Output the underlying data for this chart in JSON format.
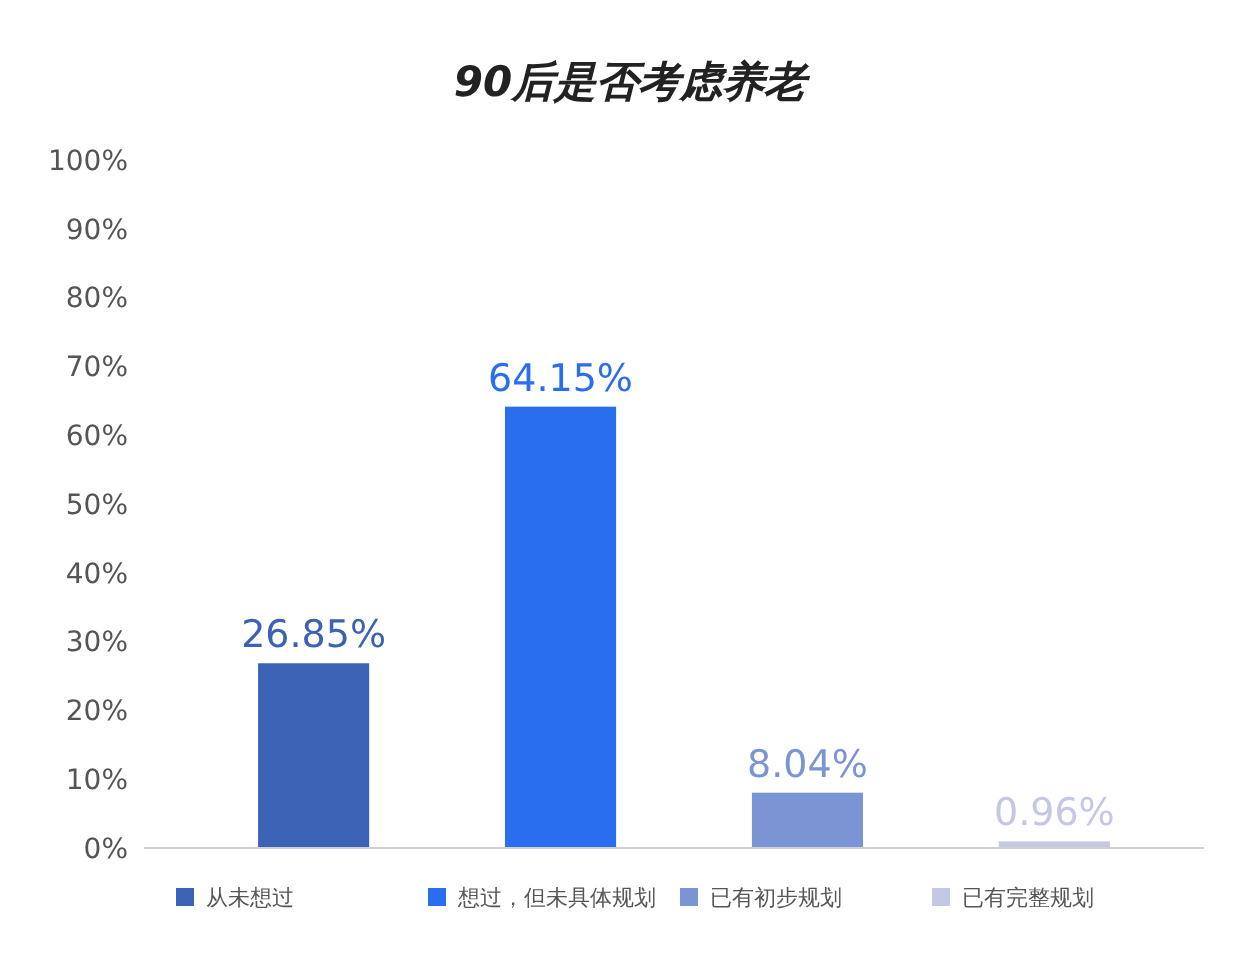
{
  "chart_data": {
    "type": "bar",
    "title": "90后是否考虑养老",
    "categories": [
      null,
      null,
      null,
      null
    ],
    "series": [
      {
        "name": "从未想过",
        "color": "#3b62b5",
        "values": [
          26.85,
          null,
          null,
          null
        ],
        "value_labels": [
          "26.85%",
          null,
          null,
          null
        ]
      },
      {
        "name": "想过，但未具体规划",
        "color": "#2a6ef0",
        "values": [
          null,
          64.15,
          null,
          null
        ],
        "value_labels": [
          null,
          "64.15%",
          null,
          null
        ]
      },
      {
        "name": "已有初步规划",
        "color": "#7b95d4",
        "values": [
          null,
          null,
          8.04,
          null
        ],
        "value_labels": [
          null,
          null,
          "8.04%",
          null
        ]
      },
      {
        "name": "已有完整规划",
        "color": "#c4c8e4",
        "values": [
          null,
          null,
          null,
          0.96
        ],
        "value_labels": [
          null,
          null,
          null,
          "0.96%"
        ]
      }
    ],
    "ylim": [
      0,
      100
    ],
    "yticks": [
      {
        "value": 0,
        "label": "0%"
      },
      {
        "value": 10,
        "label": "10%"
      },
      {
        "value": 20,
        "label": "20%"
      },
      {
        "value": 30,
        "label": "30%"
      },
      {
        "value": 40,
        "label": "40%"
      },
      {
        "value": 50,
        "label": "50%"
      },
      {
        "value": 60,
        "label": "60%"
      },
      {
        "value": 70,
        "label": "70%"
      },
      {
        "value": 80,
        "label": "80%"
      },
      {
        "value": 90,
        "label": "90%"
      },
      {
        "value": 100,
        "label": "100%"
      }
    ],
    "legend": "bottom"
  }
}
